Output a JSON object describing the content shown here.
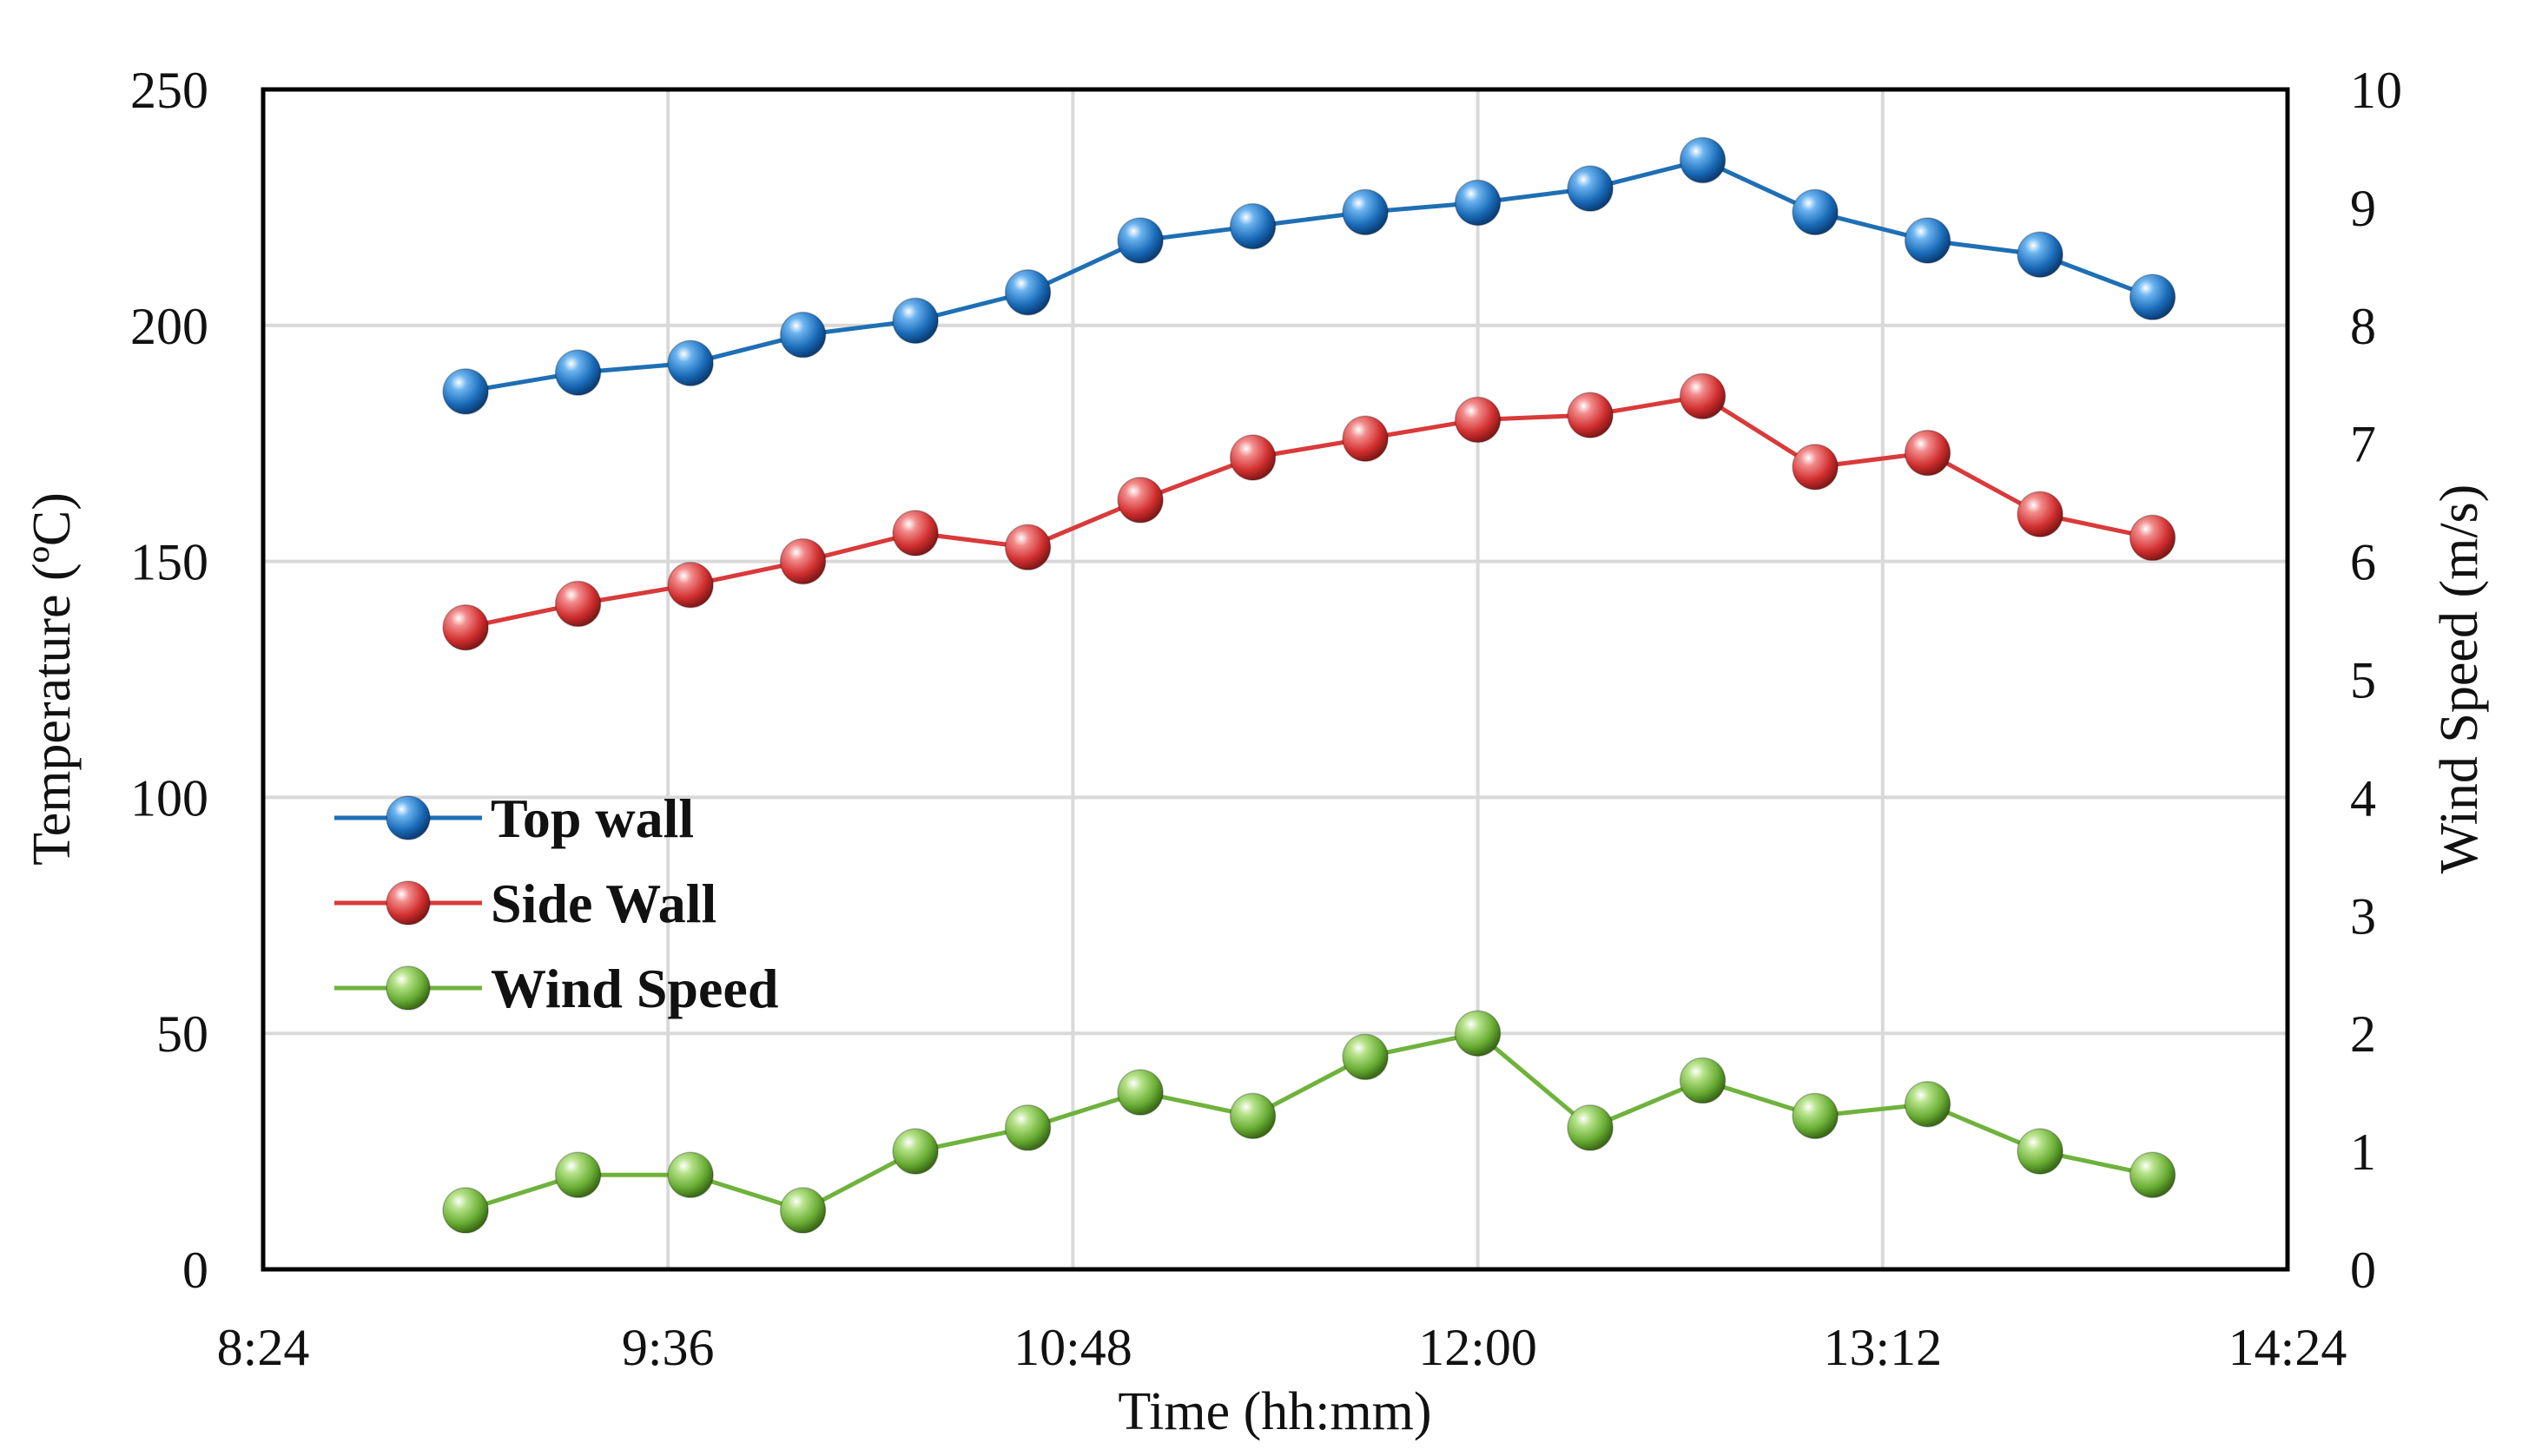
{
  "chart_data": {
    "type": "line",
    "title": "",
    "xlabel": "Time (hh:mm)",
    "ylabel": "Temperature (ºC)",
    "y2label": "Wind Speed (m/s)",
    "xlim": [
      "8:24",
      "14:24"
    ],
    "ylim": [
      0,
      250
    ],
    "y2lim": [
      0,
      10
    ],
    "x_ticks": [
      "8:24",
      "9:36",
      "10:48",
      "12:00",
      "13:12",
      "14:24"
    ],
    "y_ticks": [
      "0",
      "50",
      "100",
      "150",
      "200",
      "250"
    ],
    "y2_ticks": [
      "0",
      "1",
      "2",
      "3",
      "4",
      "5",
      "6",
      "7",
      "8",
      "9",
      "10"
    ],
    "grid": true,
    "legend_position": "left-middle",
    "x": [
      "9:00",
      "9:20",
      "9:40",
      "10:00",
      "10:20",
      "10:40",
      "11:00",
      "11:20",
      "11:40",
      "12:00",
      "12:20",
      "12:40",
      "13:00",
      "13:20",
      "13:40",
      "14:00"
    ],
    "series": [
      {
        "name": "Top wall",
        "axis": "left",
        "color": "#1f6fb4",
        "values": [
          186,
          190,
          192,
          198,
          201,
          207,
          218,
          221,
          224,
          226,
          229,
          235,
          224,
          218,
          215,
          206
        ]
      },
      {
        "name": "Side Wall",
        "axis": "left",
        "color": "#d93a3a",
        "values": [
          136,
          141,
          145,
          150,
          156,
          153,
          163,
          172,
          176,
          180,
          181,
          185,
          170,
          173,
          160,
          155
        ]
      },
      {
        "name": "Wind Speed",
        "axis": "right",
        "color": "#6fb23c",
        "values": [
          0.5,
          0.8,
          0.8,
          0.5,
          1.0,
          1.2,
          1.5,
          1.3,
          1.8,
          2.0,
          1.2,
          1.6,
          1.3,
          1.4,
          1.0,
          0.8
        ]
      }
    ]
  }
}
